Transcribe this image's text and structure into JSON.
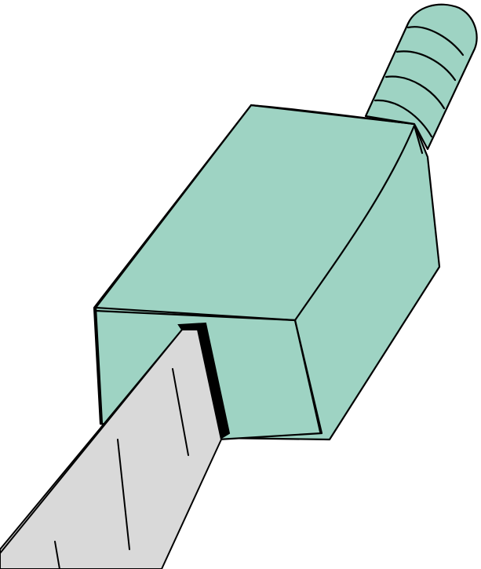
{
  "illustration": {
    "subject": "",
    "colors": {
      "background": "#ffffff",
      "handle": "#9ed3c3",
      "blade": "#d9d9d9",
      "outline": "#000000"
    }
  }
}
